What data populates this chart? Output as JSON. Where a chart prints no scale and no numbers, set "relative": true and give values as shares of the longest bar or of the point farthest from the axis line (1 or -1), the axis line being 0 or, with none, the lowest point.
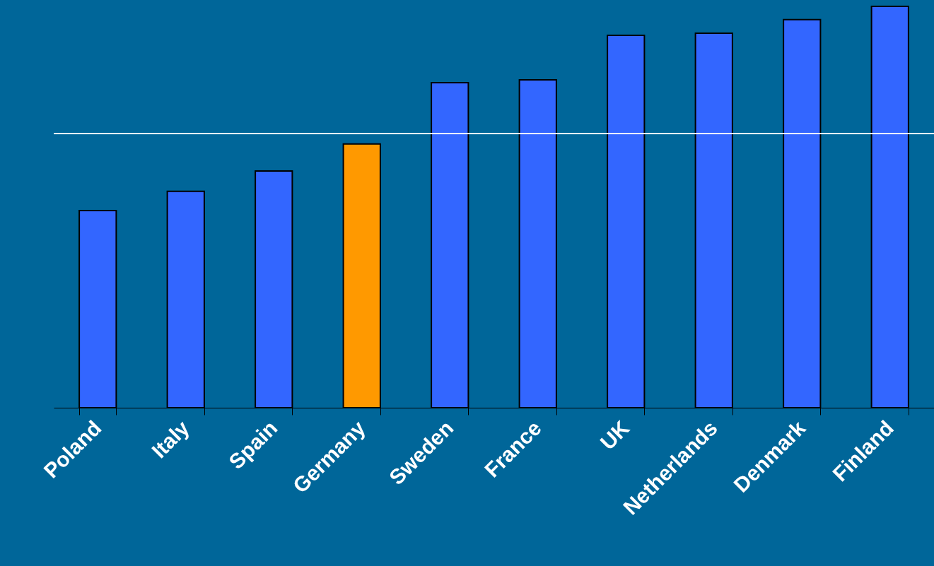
{
  "chart_data": {
    "type": "bar",
    "relative": true,
    "categories": [
      "Poland",
      "Italy",
      "Spain",
      "Germany",
      "Sweden",
      "France",
      "UK",
      "Netherlands",
      "Denmark",
      "Finland"
    ],
    "values": [
      0.491,
      0.539,
      0.59,
      0.657,
      0.81,
      0.817,
      0.928,
      0.933,
      0.967,
      1
    ],
    "colors": [
      "#3366ff",
      "#3366ff",
      "#3366ff",
      "#ff9900",
      "#3366ff",
      "#3366ff",
      "#3366ff",
      "#3366ff",
      "#3366ff",
      "#3366ff"
    ],
    "ref_lines": [
      {
        "axis": "y",
        "value": 0.683,
        "color": "#ffffff"
      }
    ]
  }
}
